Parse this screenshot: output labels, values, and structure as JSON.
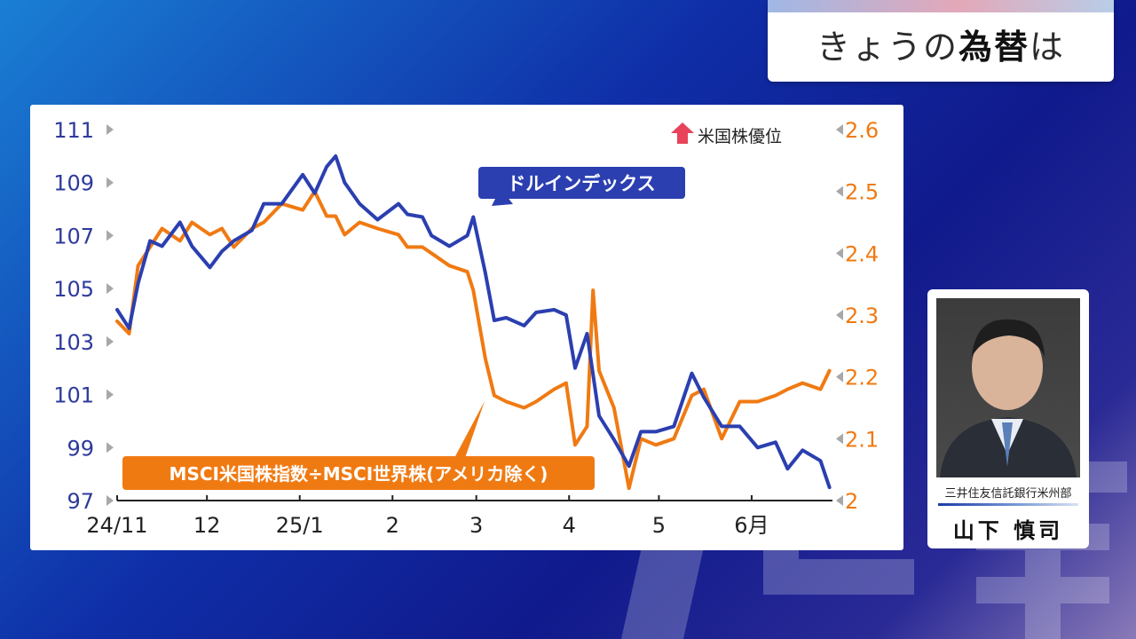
{
  "header": {
    "title_part1": "きょうの",
    "title_bold": "為替",
    "title_part2": "は"
  },
  "person": {
    "organization": "三井住友信託銀行米州部",
    "name": "山下 慎司"
  },
  "colors": {
    "dollar_index": "#2b3fb0",
    "msci_ratio": "#f07a12",
    "left_axis_text": "#2d3a9c",
    "right_axis_text": "#f07a12",
    "arrow": "#e8435a"
  },
  "chart_data": {
    "type": "line",
    "x_ticks": [
      "24/11",
      "12",
      "25/1",
      "2",
      "3",
      "4",
      "5",
      "6月"
    ],
    "y_left": {
      "ticks": [
        "111",
        "109",
        "107",
        "105",
        "103",
        "101",
        "99",
        "97"
      ],
      "range": [
        97,
        111
      ]
    },
    "y_right": {
      "ticks": [
        "2.6",
        "2.5",
        "2.4",
        "2.3",
        "2.2",
        "2.1",
        "2"
      ],
      "range": [
        2.0,
        2.6
      ]
    },
    "annotation": "米国株優位",
    "series": [
      {
        "name": "ドルインデックス",
        "axis": "left",
        "x": [
          "2024-11-01",
          "2024-11-05",
          "2024-11-08",
          "2024-11-12",
          "2024-11-16",
          "2024-11-22",
          "2024-11-26",
          "2024-12-02",
          "2024-12-06",
          "2024-12-10",
          "2024-12-16",
          "2024-12-20",
          "2024-12-26",
          "2025-01-02",
          "2025-01-06",
          "2025-01-10",
          "2025-01-13",
          "2025-01-16",
          "2025-01-21",
          "2025-01-27",
          "2025-02-03",
          "2025-02-06",
          "2025-02-11",
          "2025-02-14",
          "2025-02-20",
          "2025-02-26",
          "2025-02-28",
          "2025-03-04",
          "2025-03-07",
          "2025-03-11",
          "2025-03-17",
          "2025-03-21",
          "2025-03-27",
          "2025-03-31",
          "2025-04-03",
          "2025-04-07",
          "2025-04-11",
          "2025-04-16",
          "2025-04-21",
          "2025-04-25",
          "2025-04-30",
          "2025-05-06",
          "2025-05-12",
          "2025-05-16",
          "2025-05-22",
          "2025-05-28",
          "2025-06-03",
          "2025-06-09",
          "2025-06-13",
          "2025-06-18",
          "2025-06-24",
          "2025-06-27"
        ],
        "values": [
          104.2,
          103.5,
          105.2,
          106.8,
          106.6,
          107.5,
          106.6,
          105.8,
          106.4,
          106.8,
          107.2,
          108.2,
          108.2,
          109.3,
          108.6,
          109.6,
          110.0,
          109.0,
          108.2,
          107.6,
          108.2,
          107.8,
          107.7,
          107.0,
          106.6,
          107.0,
          107.7,
          105.6,
          103.8,
          103.9,
          103.6,
          104.1,
          104.2,
          104.0,
          102.0,
          103.3,
          100.2,
          99.3,
          98.3,
          99.6,
          99.6,
          99.8,
          101.8,
          100.9,
          99.8,
          99.8,
          99.0,
          99.2,
          98.2,
          98.9,
          98.5,
          97.5
        ]
      },
      {
        "name": "MSCI米国株指数÷MSCI世界株(アメリカ除く)",
        "axis": "right",
        "x": [
          "2024-11-01",
          "2024-11-05",
          "2024-11-08",
          "2024-11-12",
          "2024-11-16",
          "2024-11-22",
          "2024-11-26",
          "2024-12-02",
          "2024-12-06",
          "2024-12-10",
          "2024-12-16",
          "2024-12-20",
          "2024-12-26",
          "2025-01-02",
          "2025-01-06",
          "2025-01-10",
          "2025-01-13",
          "2025-01-16",
          "2025-01-21",
          "2025-01-27",
          "2025-02-03",
          "2025-02-06",
          "2025-02-11",
          "2025-02-14",
          "2025-02-20",
          "2025-02-26",
          "2025-02-28",
          "2025-03-04",
          "2025-03-07",
          "2025-03-11",
          "2025-03-17",
          "2025-03-21",
          "2025-03-27",
          "2025-03-31",
          "2025-04-03",
          "2025-04-07",
          "2025-04-09",
          "2025-04-11",
          "2025-04-16",
          "2025-04-21",
          "2025-04-25",
          "2025-04-30",
          "2025-05-06",
          "2025-05-12",
          "2025-05-16",
          "2025-05-22",
          "2025-05-28",
          "2025-06-03",
          "2025-06-09",
          "2025-06-13",
          "2025-06-18",
          "2025-06-24",
          "2025-06-27"
        ],
        "values": [
          2.29,
          2.27,
          2.38,
          2.41,
          2.44,
          2.42,
          2.45,
          2.43,
          2.44,
          2.41,
          2.44,
          2.45,
          2.48,
          2.47,
          2.5,
          2.46,
          2.46,
          2.43,
          2.45,
          2.44,
          2.43,
          2.41,
          2.41,
          2.4,
          2.38,
          2.37,
          2.34,
          2.23,
          2.17,
          2.16,
          2.15,
          2.16,
          2.18,
          2.19,
          2.09,
          2.12,
          2.34,
          2.21,
          2.15,
          2.02,
          2.1,
          2.09,
          2.1,
          2.17,
          2.18,
          2.1,
          2.16,
          2.16,
          2.17,
          2.18,
          2.19,
          2.18,
          2.21
        ]
      }
    ]
  }
}
